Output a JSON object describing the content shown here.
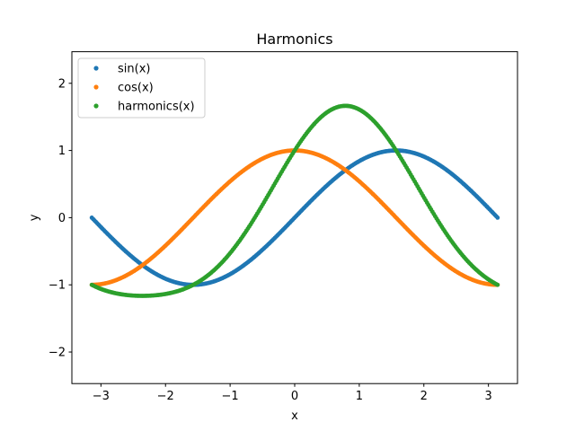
{
  "chart_data": {
    "type": "scatter",
    "title": "Harmonics",
    "xlabel": "x",
    "ylabel": "y",
    "xlim": [
      -3.45,
      3.45
    ],
    "ylim": [
      -2.47,
      2.47
    ],
    "x_ticks": [
      -3,
      -2,
      -1,
      0,
      1,
      2,
      3
    ],
    "x_tick_labels": [
      "−3",
      "−2",
      "−1",
      "0",
      "1",
      "2",
      "3"
    ],
    "y_ticks": [
      -2,
      -1,
      0,
      1,
      2
    ],
    "y_tick_labels": [
      "−2",
      "−1",
      "0",
      "1",
      "2"
    ],
    "grid": false,
    "legend_position": "upper-left",
    "x_range": [
      -3.14159,
      3.14159
    ],
    "point_count": 300,
    "series": [
      {
        "name": "sin(x)",
        "formula": "sin",
        "color": "#1f77b4"
      },
      {
        "name": "cos(x)",
        "formula": "cos",
        "color": "#ff7f0e"
      },
      {
        "name": "harmonics(x)",
        "formula": "sin+cos+0.25sin2x",
        "color": "#2ca02c"
      }
    ]
  }
}
